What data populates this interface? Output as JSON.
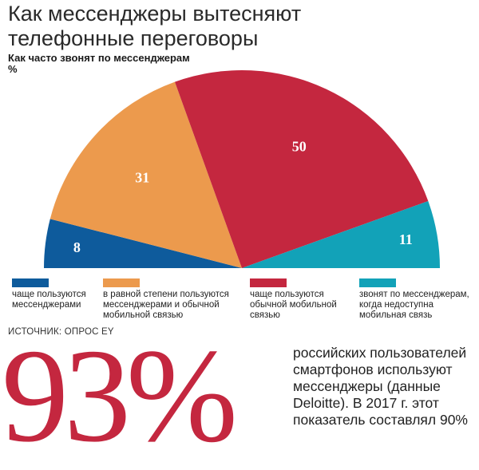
{
  "header": {
    "title": "Как мессенджеры вытесняют телефонные переговоры",
    "subtitle": "Как часто звонят по мессенджерам",
    "unit": "%"
  },
  "chart_data": {
    "type": "pie",
    "layout": "semicircle",
    "title": "Как часто звонят по мессенджерам",
    "unit": "%",
    "slices": [
      {
        "label": "чаще пользуются мессенджерами",
        "value": 8,
        "color": "#0e5b9c",
        "data_label": "8"
      },
      {
        "label": "в равной степени пользуются мессенджерами и обычной мобильной связью",
        "value": 31,
        "color": "#ec9a4d",
        "data_label": "31"
      },
      {
        "label": "чаще пользуются обычной мобильной связью",
        "value": 50,
        "color": "#c4273f",
        "data_label": "50"
      },
      {
        "label": "звонят по мессенджерам, когда недоступна мобильная связь",
        "value": 11,
        "color": "#12a2b8",
        "data_label": "11"
      }
    ]
  },
  "legend": [
    {
      "label": "чаще пользуются мессенджерами",
      "color": "#0e5b9c"
    },
    {
      "label": "в равной степени пользуются мессенджерами и обычной мобильной связью",
      "color": "#ec9a4d"
    },
    {
      "label": "чаще пользуются обычной мобильной связью",
      "color": "#c4273f"
    },
    {
      "label": "звонят по мессенджерам, когда недоступна мобильная связь",
      "color": "#12a2b8"
    }
  ],
  "source": "ИСТОЧНИК: ОПРОС EY",
  "highlight": {
    "number": "93%",
    "text": "российских пользователей смартфонов используют мессенджеры (данные Deloitte). В 2017 г. этот показатель составлял 90%"
  }
}
